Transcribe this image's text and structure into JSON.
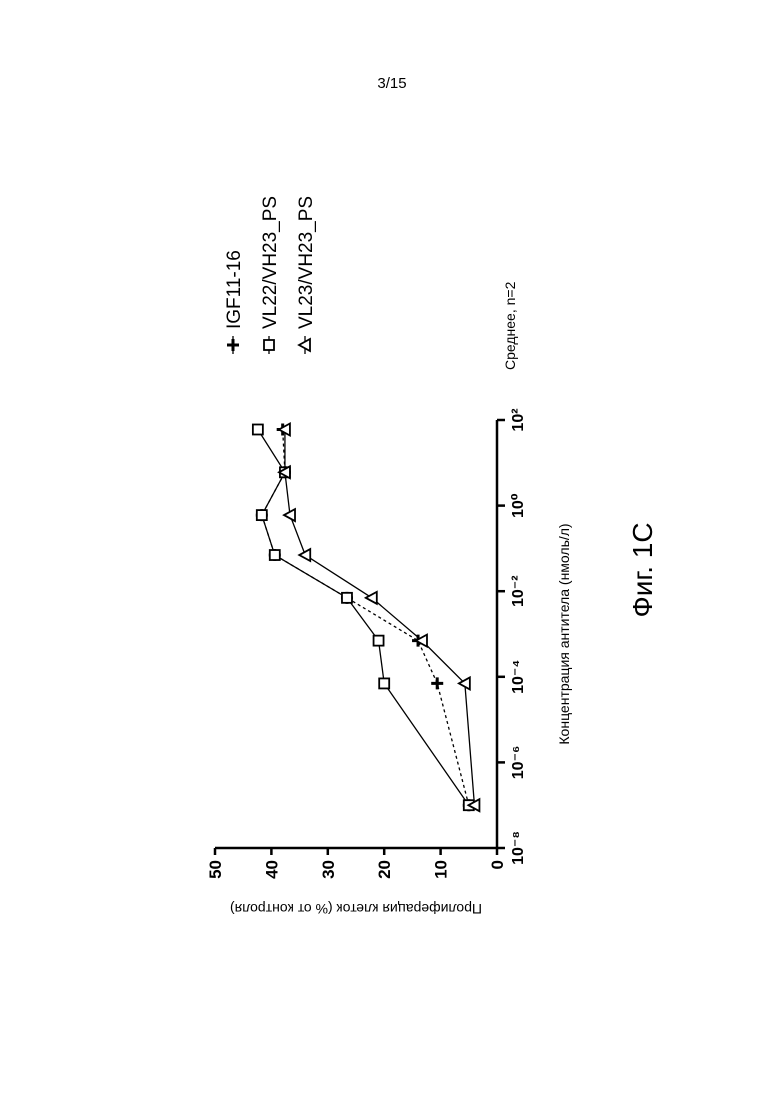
{
  "page_number": "3/15",
  "figure_label": "Фиг. 1C",
  "chart_data": {
    "type": "scatter",
    "x_label": "Концентрация антитела (нмоль/л)",
    "y_label": "Пролиферация клеток (% от контроля)",
    "annotation": "Среднее, n=2",
    "x_log": true,
    "xlim": [
      1e-08,
      100
    ],
    "xticks": [
      {
        "value": 1e-08,
        "label": "10⁻⁸"
      },
      {
        "value": 1e-06,
        "label": "10⁻⁶"
      },
      {
        "value": 0.0001,
        "label": "10⁻⁴"
      },
      {
        "value": 0.01,
        "label": "10⁻²"
      },
      {
        "value": 1,
        "label": "10⁰"
      },
      {
        "value": 100,
        "label": "10²"
      }
    ],
    "ylim": [
      0,
      50
    ],
    "yticks": [
      0,
      10,
      20,
      30,
      40,
      50
    ],
    "x": [
      1e-07,
      7e-05,
      0.0007,
      0.007,
      0.07,
      0.6,
      6,
      60
    ],
    "series": [
      {
        "name": "IGF11-16",
        "color": "#000000",
        "marker": "plus",
        "line": "dotted",
        "values": [
          5,
          10.6,
          14,
          26.6,
          39.4,
          41.7,
          37.6,
          38
        ]
      },
      {
        "name": "VL22/VH23_PS",
        "color": "#000000",
        "marker": "square",
        "line": "solid",
        "values": [
          5,
          20,
          21,
          26.6,
          39.4,
          41.7,
          37.6,
          42.4
        ]
      },
      {
        "name": "VL23/VH23_PS",
        "color": "#000000",
        "marker": "triangle",
        "line": "solid",
        "values": [
          4,
          5.7,
          13.3,
          22.2,
          34,
          36.7,
          37.6,
          37.6
        ]
      }
    ]
  }
}
